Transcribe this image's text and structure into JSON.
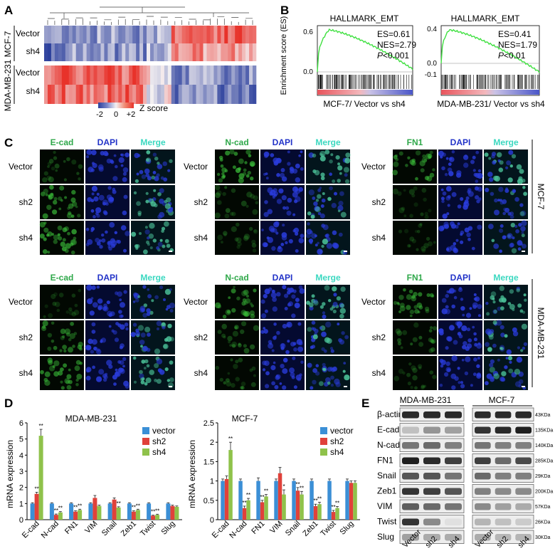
{
  "panel_labels": {
    "a": "A",
    "b": "B",
    "c": "C",
    "d": "D",
    "e": "E"
  },
  "panel_a": {
    "cell_lines": [
      "MCF-7",
      "MDA-MB-231"
    ],
    "rows": [
      "Vector",
      "sh4",
      "Vector",
      "sh4"
    ],
    "legend_ticks": [
      "-2",
      "0",
      "+2"
    ],
    "legend_title": "Z score"
  },
  "panel_b": {
    "plots": [
      {
        "title": "HALLMARK_EMT",
        "es": "ES=0.61",
        "nes": "NES=2.79",
        "p_label": "P",
        "p_value": "<0.001",
        "y_ticks": [
          "0.6",
          "0.0"
        ],
        "x_label": "MCF-7/ Vector vs sh4"
      },
      {
        "title": "HALLMARK_EMT",
        "es": "ES=0.41",
        "nes": "NES=1.79",
        "p_label": "P",
        "p_value": "<0.01",
        "y_ticks": [
          "0.4",
          "0.0",
          "-0.1"
        ],
        "x_label": "MDA-MB-231/ Vector vs sh4"
      }
    ],
    "y_axis_label": "Enrichment score (ES)",
    "colors": {
      "curve": "#3fe040",
      "rank_red": "#e8545c",
      "rank_blue": "#4a56c8"
    }
  },
  "panel_c": {
    "groups": [
      {
        "marker": "E-cad",
        "dapi": "DAPI",
        "merge": "Merge"
      },
      {
        "marker": "N-cad",
        "dapi": "DAPI",
        "merge": "Merge"
      },
      {
        "marker": "FN1",
        "dapi": "DAPI",
        "merge": "Merge"
      }
    ],
    "rows": [
      "Vector",
      "sh2",
      "sh4"
    ],
    "cell_lines": [
      "MCF-7",
      "MDA-MB-231"
    ],
    "colors": {
      "marker_label": "#2fa84a",
      "dapi_label": "#2233c8",
      "merge_label": "#3ad8c0"
    }
  },
  "panel_d": {
    "y_axis_label": "mRNA expression",
    "colors": {
      "vector": "#3b8fd6",
      "sh2": "#e0413a",
      "sh4": "#8fc24b"
    }
  },
  "panel_e": {
    "cell_lines": [
      "MDA-MB-231",
      "MCF-7"
    ],
    "proteins": [
      "β-actin",
      "E-cad",
      "N-cad",
      "FN1",
      "Snail",
      "Zeb1",
      "VIM",
      "Twist",
      "Slug"
    ],
    "sizes": [
      "43KDa",
      "135KDa",
      "140KDa",
      "285KDa",
      "29KDa",
      "200KDa",
      "57KDa",
      "26KDa",
      "30KDa"
    ],
    "lanes": [
      "Vector",
      "sh2",
      "sh4",
      "Vector",
      "sh2",
      "sh4"
    ],
    "band_intensity": {
      "mda": [
        [
          0.9,
          0.9,
          0.9
        ],
        [
          0.2,
          0.4,
          0.35
        ],
        [
          0.55,
          0.6,
          0.5
        ],
        [
          0.95,
          0.9,
          0.8
        ],
        [
          0.7,
          0.7,
          0.55
        ],
        [
          0.85,
          0.8,
          0.7
        ],
        [
          0.65,
          0.6,
          0.55
        ],
        [
          0.85,
          0.45,
          0.05
        ],
        [
          0.35,
          0.3,
          0.3
        ]
      ],
      "mcf": [
        [
          0.9,
          0.9,
          0.9
        ],
        [
          0.85,
          0.9,
          0.95
        ],
        [
          0.55,
          0.5,
          0.5
        ],
        [
          0.8,
          0.6,
          0.75
        ],
        [
          0.6,
          0.5,
          0.5
        ],
        [
          0.5,
          0.45,
          0.45
        ],
        [
          0.45,
          0.35,
          0.3
        ],
        [
          0.25,
          0.2,
          0.15
        ],
        [
          0.3,
          0.25,
          0.25
        ]
      ]
    }
  },
  "chart_data": [
    {
      "type": "bar",
      "title": "MDA-MB-231",
      "categories": [
        "E-cad",
        "N-cad",
        "FN1",
        "VIM",
        "Snail",
        "Zeb1",
        "Twist",
        "Slug"
      ],
      "series": [
        {
          "name": "vector",
          "values": [
            1,
            1,
            1,
            1,
            1,
            1,
            1,
            1
          ]
        },
        {
          "name": "sh2",
          "values": [
            1.6,
            0.3,
            0.5,
            1.35,
            1.25,
            0.5,
            0.25,
            0.85
          ]
        },
        {
          "name": "sh4",
          "values": [
            5.2,
            0.45,
            0.6,
            0.85,
            0.75,
            0.6,
            0.3,
            0.8
          ]
        }
      ],
      "errors": [
        [
          0.05,
          0.05,
          0.05,
          0.05,
          0.05,
          0.05,
          0.05,
          0.05
        ],
        [
          0.1,
          0.05,
          0.05,
          0.15,
          0.1,
          0.05,
          0.03,
          0.05
        ],
        [
          0.4,
          0.05,
          0.05,
          0.05,
          0.05,
          0.05,
          0.04,
          0.05
        ]
      ],
      "significance": [
        [
          "",
          "",
          "",
          "",
          "",
          "",
          "",
          ""
        ],
        [
          "**",
          "**",
          "**",
          "",
          "",
          "**",
          "**",
          ""
        ],
        [
          "**",
          "**",
          "**",
          "",
          "**",
          "**",
          "**",
          ""
        ]
      ],
      "xlabel": "",
      "ylabel": "mRNA expression",
      "ylim": [
        0,
        6
      ],
      "yticks": [
        "0",
        "1",
        "2",
        "3",
        "4",
        "5",
        "6"
      ]
    },
    {
      "type": "bar",
      "title": "MCF-7",
      "categories": [
        "E-cad",
        "N-cad",
        "FN1",
        "VIM",
        "Snail",
        "Zeb1",
        "Twist",
        "Slug"
      ],
      "series": [
        {
          "name": "vector",
          "values": [
            1,
            1,
            1,
            1,
            1,
            1,
            1,
            1
          ]
        },
        {
          "name": "sh2",
          "values": [
            1.05,
            0.3,
            0.45,
            1.2,
            0.75,
            0.35,
            0.2,
            0.95
          ]
        },
        {
          "name": "sh4",
          "values": [
            1.8,
            0.5,
            0.6,
            0.65,
            0.65,
            0.4,
            0.3,
            0.95
          ]
        }
      ],
      "errors": [
        [
          0.05,
          0.05,
          0.08,
          0.05,
          0.05,
          0.05,
          0.05,
          0.05
        ],
        [
          0.08,
          0.05,
          0.05,
          0.15,
          0.08,
          0.05,
          0.04,
          0.05
        ],
        [
          0.2,
          0.05,
          0.05,
          0.12,
          0.08,
          0.05,
          0.04,
          0.05
        ]
      ],
      "significance": [
        [
          "",
          "",
          "",
          "",
          "",
          "",
          "",
          ""
        ],
        [
          "",
          "**",
          "**",
          "",
          "**",
          "**",
          "**",
          ""
        ],
        [
          "**",
          "**",
          "**",
          "*",
          "**",
          "**",
          "**",
          ""
        ]
      ],
      "xlabel": "",
      "ylabel": "mRNA expression",
      "ylim": [
        0,
        2.5
      ],
      "yticks": [
        "0",
        "0.5",
        "1",
        "1.5",
        "2",
        "2.5"
      ]
    }
  ]
}
